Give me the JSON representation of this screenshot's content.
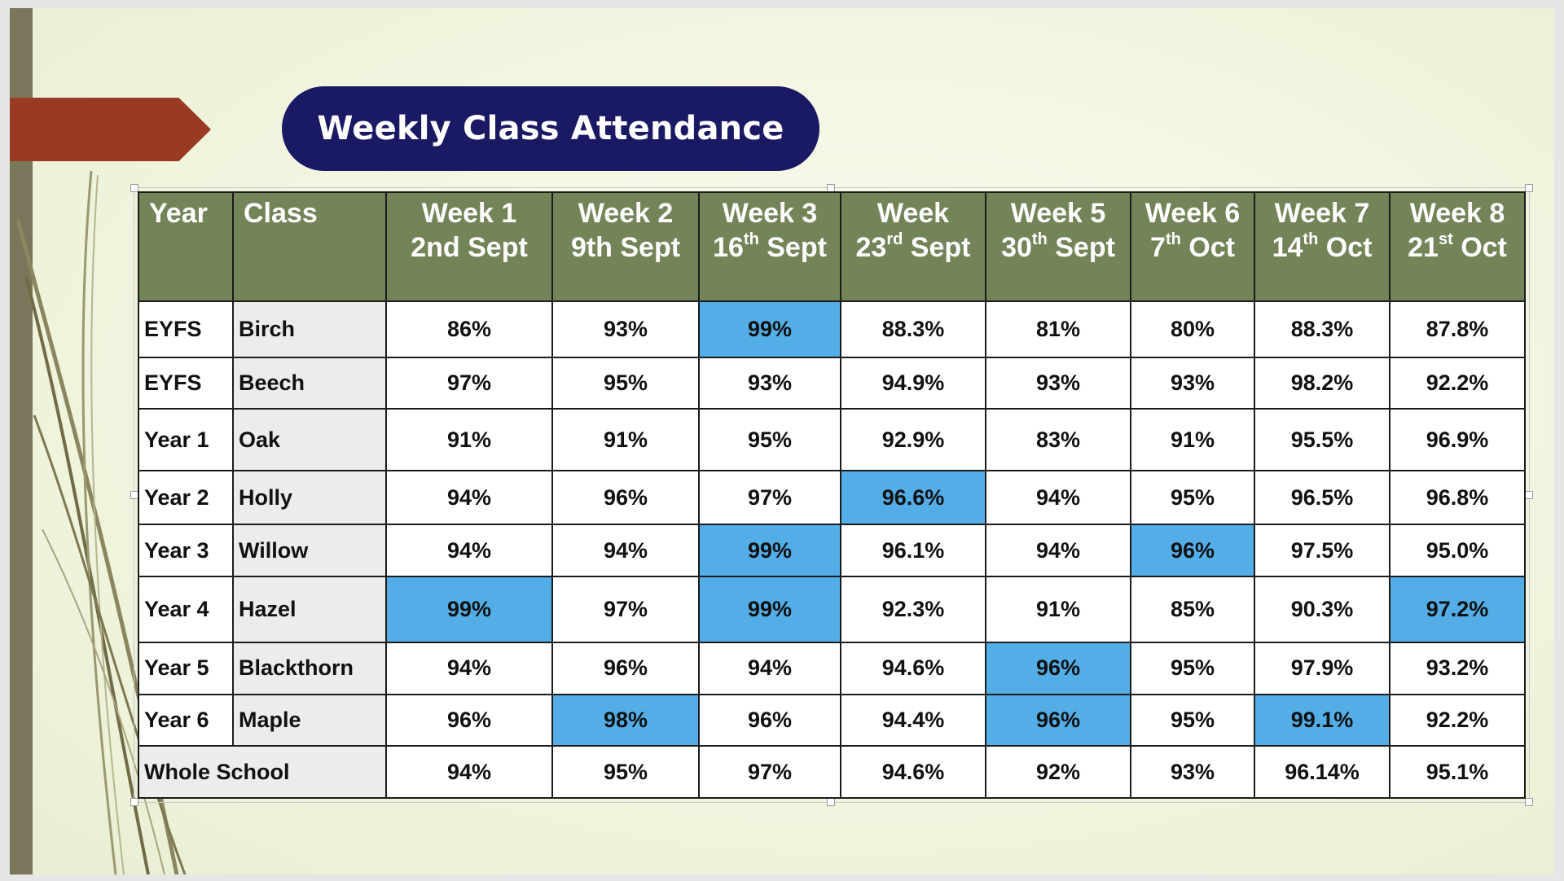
{
  "title": "Weekly Class Attendance",
  "colors": {
    "header_bg": "#728458",
    "highlight": "#53aee8",
    "title_bg": "#1a1a64",
    "accent_marker": "#993a22"
  },
  "table": {
    "header": {
      "year": "Year",
      "class": "Class",
      "weeks": [
        {
          "week": "Week 1",
          "date_num": "2nd",
          "date_sup": "",
          "date_rest": " Sept"
        },
        {
          "week": "Week 2",
          "date_num": "9th",
          "date_sup": "",
          "date_rest": " Sept"
        },
        {
          "week": "Week 3",
          "date_num": "16",
          "date_sup": "th",
          "date_rest": " Sept"
        },
        {
          "week": "Week",
          "date_num": "23",
          "date_sup": "rd",
          "date_rest": " Sept"
        },
        {
          "week": "Week 5",
          "date_num": "30",
          "date_sup": "th",
          "date_rest": " Sept"
        },
        {
          "week": "Week 6",
          "date_num": "7",
          "date_sup": "th",
          "date_rest": " Oct"
        },
        {
          "week": "Week 7",
          "date_num": "14",
          "date_sup": "th",
          "date_rest": " Oct"
        },
        {
          "week": "Week 8",
          "date_num": "21",
          "date_sup": "st",
          "date_rest": " Oct"
        }
      ]
    },
    "rows": [
      {
        "year": "EYFS",
        "class": "Birch",
        "values": [
          "86%",
          "93%",
          "99%",
          "88.3%",
          "81%",
          "80%",
          "88.3%",
          "87.8%"
        ],
        "highlight": [
          2
        ]
      },
      {
        "year": "EYFS",
        "class": "Beech",
        "values": [
          "97%",
          "95%",
          "93%",
          "94.9%",
          "93%",
          "93%",
          "98.2%",
          "92.2%"
        ],
        "highlight": []
      },
      {
        "year": "Year 1",
        "class": "Oak",
        "values": [
          "91%",
          "91%",
          "95%",
          "92.9%",
          "83%",
          "91%",
          "95.5%",
          "96.9%"
        ],
        "highlight": []
      },
      {
        "year": "Year 2",
        "class": "Holly",
        "values": [
          "94%",
          "96%",
          "97%",
          "96.6%",
          "94%",
          "95%",
          "96.5%",
          "96.8%"
        ],
        "highlight": [
          3
        ]
      },
      {
        "year": "Year 3",
        "class": "Willow",
        "values": [
          "94%",
          "94%",
          "99%",
          "96.1%",
          "94%",
          "96%",
          "97.5%",
          "95.0%"
        ],
        "highlight": [
          2,
          5
        ]
      },
      {
        "year": "Year 4",
        "class": "Hazel",
        "values": [
          "99%",
          "97%",
          "99%",
          "92.3%",
          "91%",
          "85%",
          "90.3%",
          "97.2%"
        ],
        "highlight": [
          0,
          2,
          7
        ]
      },
      {
        "year": "Year 5",
        "class": "Blackthorn",
        "values": [
          "94%",
          "96%",
          "94%",
          "94.6%",
          "96%",
          "95%",
          "97.9%",
          "93.2%"
        ],
        "highlight": [
          4
        ]
      },
      {
        "year": "Year 6",
        "class": "Maple",
        "values": [
          "96%",
          "98%",
          "96%",
          "94.4%",
          "96%",
          "95%",
          "99.1%",
          "92.2%"
        ],
        "highlight": [
          1,
          4,
          6
        ]
      }
    ],
    "whole_school": {
      "label": "Whole School",
      "values": [
        "94%",
        "95%",
        "97%",
        "94.6%",
        "92%",
        "93%",
        "96.14%",
        "95.1%"
      ]
    }
  }
}
